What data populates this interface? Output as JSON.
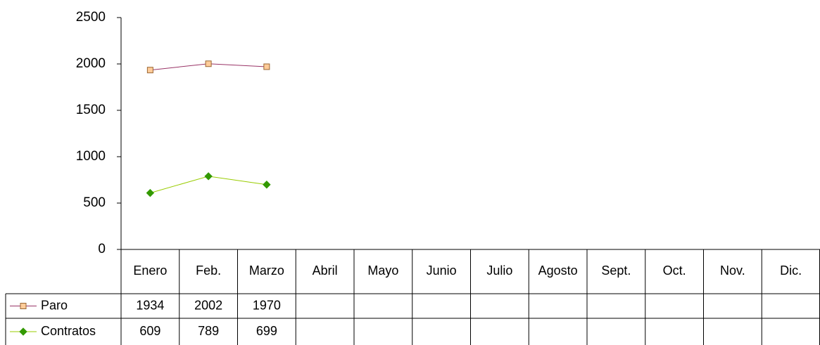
{
  "chart_data": {
    "type": "line",
    "categories": [
      "Enero",
      "Feb.",
      "Marzo",
      "Abril",
      "Mayo",
      "Junio",
      "Julio",
      "Agosto",
      "Sept.",
      "Oct.",
      "Nov.",
      "Dic."
    ],
    "series": [
      {
        "name": "Paro",
        "color": "#993366",
        "marker": "square",
        "marker_color": "#ffcc99",
        "values": [
          1934,
          2002,
          1970,
          null,
          null,
          null,
          null,
          null,
          null,
          null,
          null,
          null
        ]
      },
      {
        "name": "Contratos",
        "color": "#99cc00",
        "marker": "diamond",
        "marker_color": "#339900",
        "values": [
          609,
          789,
          699,
          null,
          null,
          null,
          null,
          null,
          null,
          null,
          null,
          null
        ]
      }
    ],
    "ylim": [
      0,
      2500
    ],
    "yticks": [
      0,
      500,
      1000,
      1500,
      2000,
      2500
    ],
    "data_table": true
  }
}
